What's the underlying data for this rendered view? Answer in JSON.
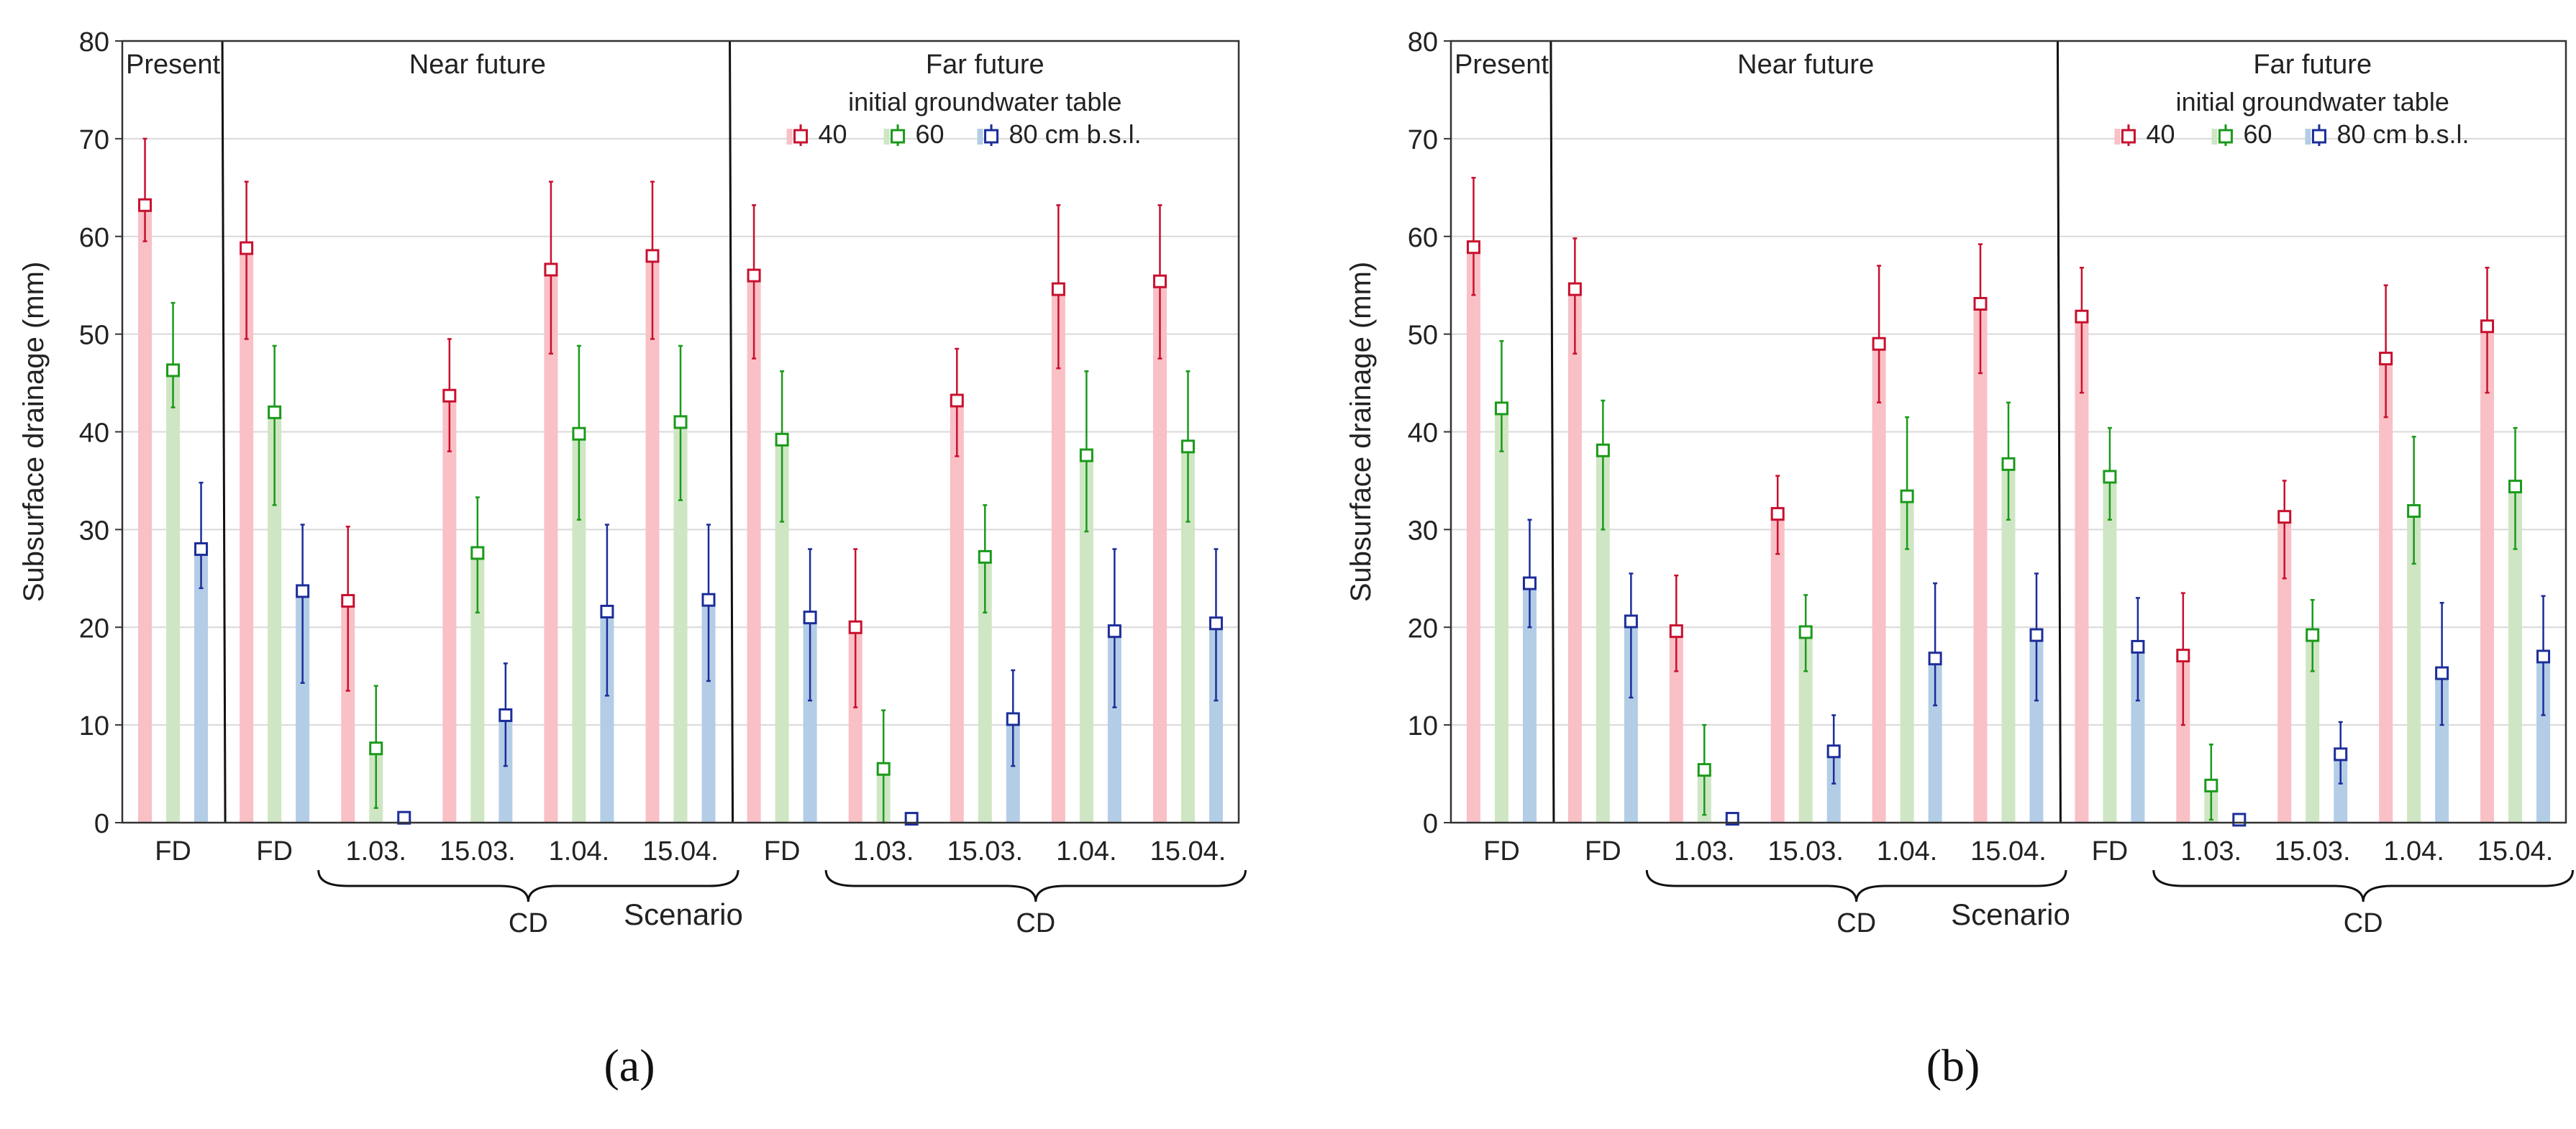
{
  "chart_data": [
    {
      "type": "bar",
      "panel_label": "(a)",
      "ylabel": "Subsurface drainage (mm)",
      "xlabel": "Scenario",
      "ylim": [
        0,
        80
      ],
      "yticks": [
        "0",
        "10",
        "20",
        "30",
        "40",
        "50",
        "60",
        "70",
        "80"
      ],
      "grid": true,
      "categories": [
        "FD",
        "FD",
        "1.03.",
        "15.03.",
        "1.04.",
        "15.04.",
        "FD",
        "1.03.",
        "15.03.",
        "1.04.",
        "15.04."
      ],
      "periods": [
        "Present",
        "Near future",
        "Far future"
      ],
      "cd_labels": [
        "CD",
        "CD"
      ],
      "legend": {
        "title": "initial groundwater table",
        "entries": [
          "40",
          "60",
          "80 cm b.s.l."
        ]
      },
      "series": [
        {
          "name": "40",
          "color": "#c8102e",
          "fill": "#f9c0c6",
          "values": [
            63.2,
            58.8,
            22.7,
            43.7,
            56.6,
            58.0,
            56.0,
            20.0,
            43.2,
            54.6,
            55.4
          ],
          "err_low": [
            59.5,
            49.5,
            13.5,
            38.0,
            48.0,
            49.5,
            47.5,
            11.8,
            37.5,
            46.5,
            47.5
          ],
          "err_high": [
            70.0,
            65.6,
            30.3,
            49.5,
            65.6,
            65.6,
            63.2,
            28.0,
            48.5,
            63.2,
            63.2
          ]
        },
        {
          "name": "60",
          "color": "#1a9a1a",
          "fill": "#cfe6c4",
          "values": [
            46.3,
            42.0,
            7.6,
            27.6,
            39.8,
            41.0,
            39.2,
            5.5,
            27.2,
            37.6,
            38.5
          ],
          "err_low": [
            42.5,
            32.5,
            1.5,
            21.5,
            31.0,
            33.0,
            30.8,
            0.0,
            21.5,
            29.8,
            30.8
          ],
          "err_high": [
            53.2,
            48.8,
            14.0,
            33.3,
            48.8,
            48.8,
            46.2,
            11.5,
            32.5,
            46.2,
            46.2
          ]
        },
        {
          "name": "80 cm b.s.l.",
          "color": "#1c2d9a",
          "fill": "#b4cde6",
          "values": [
            28.0,
            23.7,
            0.5,
            11.0,
            21.6,
            22.8,
            21.0,
            0.4,
            10.6,
            19.6,
            20.4
          ],
          "err_low": [
            24.0,
            14.3,
            0.0,
            5.8,
            13.0,
            14.5,
            12.5,
            0.0,
            5.8,
            11.8,
            12.5
          ],
          "err_high": [
            34.8,
            30.5,
            1.0,
            16.3,
            30.5,
            30.5,
            28.0,
            0.8,
            15.6,
            28.0,
            28.0
          ]
        }
      ]
    },
    {
      "type": "bar",
      "panel_label": "(b)",
      "ylabel": "Subsurface drainage (mm)",
      "xlabel": "Scenario",
      "ylim": [
        0,
        80
      ],
      "yticks": [
        "0",
        "10",
        "20",
        "30",
        "40",
        "50",
        "60",
        "70",
        "80"
      ],
      "grid": true,
      "categories": [
        "FD",
        "FD",
        "1.03.",
        "15.03.",
        "1.04.",
        "15.04.",
        "FD",
        "1.03.",
        "15.03.",
        "1.04.",
        "15.04."
      ],
      "periods": [
        "Present",
        "Near future",
        "Far future"
      ],
      "cd_labels": [
        "CD",
        "CD"
      ],
      "legend": {
        "title": "initial groundwater table",
        "entries": [
          "40",
          "60",
          "80 cm b.s.l."
        ]
      },
      "series": [
        {
          "name": "40",
          "color": "#c8102e",
          "fill": "#f9c0c6",
          "values": [
            58.9,
            54.6,
            19.6,
            31.6,
            49.0,
            53.1,
            51.8,
            17.1,
            31.3,
            47.5,
            50.8
          ],
          "err_low": [
            54.0,
            48.0,
            15.5,
            27.5,
            43.0,
            46.0,
            44.0,
            10.0,
            25.0,
            41.5,
            44.0
          ],
          "err_high": [
            66.0,
            59.8,
            25.3,
            35.5,
            57.0,
            59.2,
            56.8,
            23.5,
            35.0,
            55.0,
            56.8
          ]
        },
        {
          "name": "60",
          "color": "#1a9a1a",
          "fill": "#cfe6c4",
          "values": [
            42.4,
            38.1,
            5.4,
            19.5,
            33.4,
            36.7,
            35.4,
            3.8,
            19.2,
            31.9,
            34.4
          ],
          "err_low": [
            38.0,
            30.0,
            0.8,
            15.5,
            28.0,
            31.0,
            31.0,
            0.3,
            15.5,
            26.5,
            28.0
          ],
          "err_high": [
            49.3,
            43.2,
            10.0,
            23.3,
            41.5,
            43.0,
            40.4,
            8.0,
            22.8,
            39.5,
            40.4
          ]
        },
        {
          "name": "80 cm b.s.l.",
          "color": "#1c2d9a",
          "fill": "#b4cde6",
          "values": [
            24.5,
            20.6,
            0.4,
            7.3,
            16.8,
            19.2,
            18.0,
            0.3,
            7.0,
            15.3,
            17.0
          ],
          "err_low": [
            20.0,
            12.8,
            0.0,
            4.0,
            12.0,
            12.5,
            12.5,
            0.0,
            4.0,
            10.0,
            11.0
          ],
          "err_high": [
            31.0,
            25.5,
            0.8,
            11.0,
            24.5,
            25.5,
            23.0,
            0.6,
            10.3,
            22.5,
            23.2
          ]
        }
      ]
    }
  ]
}
